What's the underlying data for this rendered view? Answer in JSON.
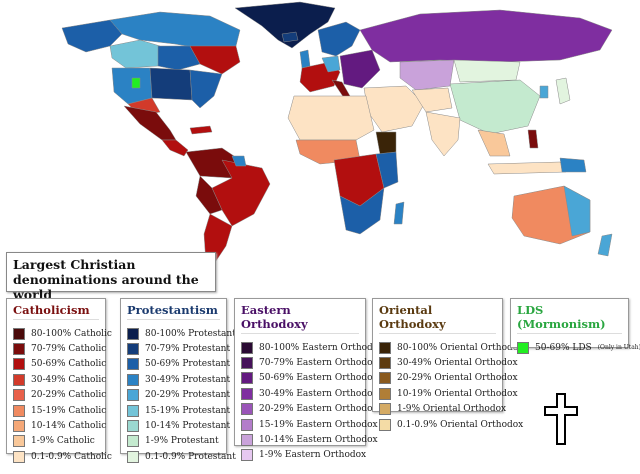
{
  "title": {
    "line1": "Largest Christian",
    "line2": "denominations around the world"
  },
  "map_colors": {
    "ocean": "#ffffff",
    "land_border": "#8a8a8a"
  },
  "legends": [
    {
      "id": "catholicism",
      "title": "Catholicism",
      "title_color": "#7a0f0f",
      "items": [
        {
          "label": "80-100% Catholic",
          "color": "#4a0a0a"
        },
        {
          "label": "70-79% Catholic",
          "color": "#7a0c0c"
        },
        {
          "label": "50-69% Catholic",
          "color": "#b20f0f"
        },
        {
          "label": "30-49% Catholic",
          "color": "#d23a2a"
        },
        {
          "label": "20-29% Catholic",
          "color": "#e8604a"
        },
        {
          "label": "15-19% Catholic",
          "color": "#f08a60"
        },
        {
          "label": "10-14% Catholic",
          "color": "#f5a878"
        },
        {
          "label": "1-9% Catholic",
          "color": "#f9c89a"
        },
        {
          "label": "0.1-0.9% Catholic",
          "color": "#fde3c4"
        }
      ]
    },
    {
      "id": "protestantism",
      "title": "Protestantism",
      "title_color": "#1a3a6e",
      "items": [
        {
          "label": "80-100% Protestant",
          "color": "#0b1e4d"
        },
        {
          "label": "70-79% Protestant",
          "color": "#143d7a"
        },
        {
          "label": "50-69% Protestant",
          "color": "#1c5fa8"
        },
        {
          "label": "30-49% Protestant",
          "color": "#2b82c4"
        },
        {
          "label": "20-29% Protestant",
          "color": "#4aa6d6"
        },
        {
          "label": "15-19% Protestant",
          "color": "#73c4d8"
        },
        {
          "label": "10-14% Protestant",
          "color": "#9bd8d0"
        },
        {
          "label": "1-9% Protestant",
          "color": "#c4eacf"
        },
        {
          "label": "0.1-0.9% Protestant",
          "color": "#e2f4df"
        }
      ]
    },
    {
      "id": "eastern-orthodoxy",
      "title": "Eastern Orthodoxy",
      "title_color": "#4a1066",
      "items": [
        {
          "label": "80-100% Eastern Orthodox",
          "color": "#2a0a33"
        },
        {
          "label": "70-79% Eastern Orthodox",
          "color": "#46115a"
        },
        {
          "label": "50-69% Eastern Orthodox",
          "color": "#631a80"
        },
        {
          "label": "30-49% Eastern Orthodox",
          "color": "#7f2ea0"
        },
        {
          "label": "20-29% Eastern Orthodox",
          "color": "#9a55b8"
        },
        {
          "label": "15-19% Eastern Orthodox",
          "color": "#b37dca"
        },
        {
          "label": "10-14% Eastern Orthodox",
          "color": "#c9a2da"
        },
        {
          "label": "1-9% Eastern Orthodox",
          "color": "#e6c8f0"
        }
      ]
    },
    {
      "id": "oriental-orthodoxy",
      "title": "Oriental Orthodoxy",
      "title_color": "#5a3a10",
      "items": [
        {
          "label": "80-100% Oriental Orthodox",
          "color": "#3a2408"
        },
        {
          "label": "30-49% Oriental Orthodox",
          "color": "#5e3c10"
        },
        {
          "label": "20-29% Oriental Orthodox",
          "color": "#8a5a1e"
        },
        {
          "label": "10-19% Oriental Orthodox",
          "color": "#b07e36"
        },
        {
          "label": "1-9% Oriental Orthodox",
          "color": "#d4aa64"
        },
        {
          "label": "0.1-0.9% Oriental Orthodox",
          "color": "#f4dca6"
        }
      ]
    },
    {
      "id": "lds",
      "title": "LDS (Mormonism)",
      "title_color": "#2aa640",
      "items": [
        {
          "label": "50-69% LDS",
          "color": "#22ee22",
          "note": "(Only in Utah)"
        }
      ]
    }
  ],
  "icons": {
    "cross": "latin-cross-icon"
  }
}
